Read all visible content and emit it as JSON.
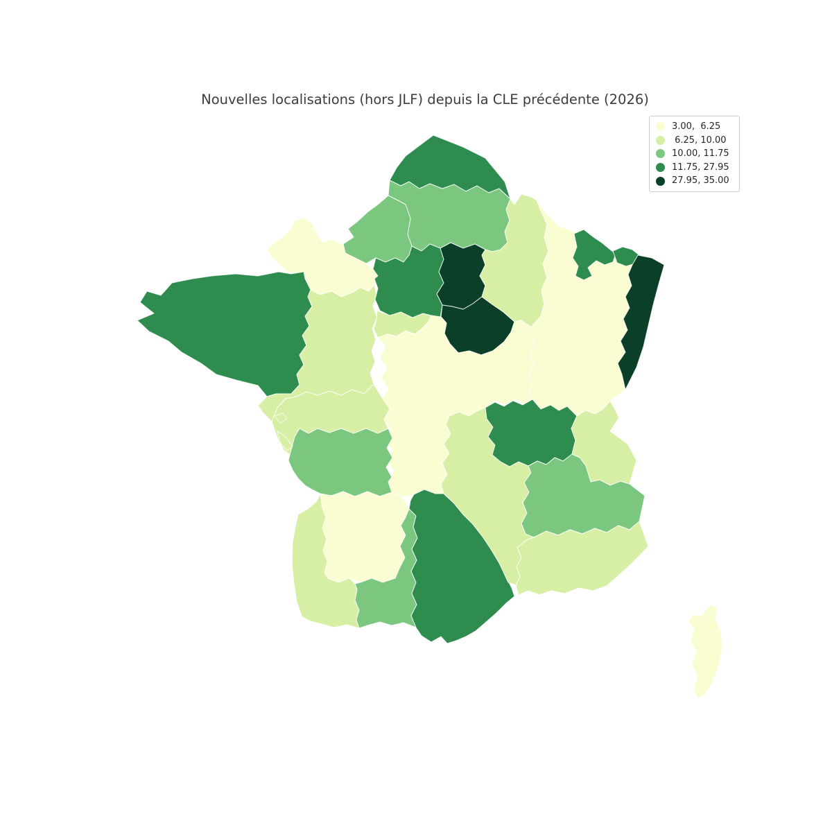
{
  "title": "Nouvelles localisations (hors JLF) depuis la CLE précédente (2026)",
  "chart_data": {
    "type": "choropleth",
    "title": "Nouvelles localisations (hors JLF) depuis la CLE précédente (2026)",
    "geography": "France (régions, avec Corse)",
    "grid": false,
    "legend": {
      "position": "upper-right",
      "entries": [
        {
          "label": "3.00,  6.25",
          "range": [
            3.0,
            6.25
          ],
          "color": "#fafcd2"
        },
        {
          "label": " 6.25, 10.00",
          "range": [
            6.25,
            10.0
          ],
          "color": "#d7efa4"
        },
        {
          "label": "10.00, 11.75",
          "range": [
            10.0,
            11.75
          ],
          "color": "#7cc77f"
        },
        {
          "label": "11.75, 27.95",
          "range": [
            11.75,
            27.95
          ],
          "color": "#2e8c4f"
        },
        {
          "label": "27.95, 35.00",
          "range": [
            27.95,
            35.0
          ],
          "color": "#0c3f28"
        }
      ]
    },
    "map_style": {
      "border_color": "#ffffff",
      "border_width": 1,
      "background": "#ffffff"
    },
    "regions": [
      {
        "id": "nord",
        "bin": 3
      },
      {
        "id": "picardie",
        "bin": 2
      },
      {
        "id": "haute_normandie",
        "bin": 2
      },
      {
        "id": "basse_normandie",
        "bin": 0
      },
      {
        "id": "bretagne",
        "bin": 3
      },
      {
        "id": "pays_de_la_loire",
        "bin": 1
      },
      {
        "id": "centre",
        "bin": 1
      },
      {
        "id": "perche",
        "bin": 3
      },
      {
        "id": "ile_de_france",
        "bin": 4
      },
      {
        "id": "bourgogne_nord",
        "bin": 4
      },
      {
        "id": "champagne",
        "bin": 1
      },
      {
        "id": "lorraine_fc",
        "bin": 0
      },
      {
        "id": "moselle_ouest",
        "bin": 3
      },
      {
        "id": "moselle_est",
        "bin": 3
      },
      {
        "id": "alsace",
        "bin": 4
      },
      {
        "id": "berry_auvergne",
        "bin": 0
      },
      {
        "id": "poitou",
        "bin": 1
      },
      {
        "id": "limousin",
        "bin": 2
      },
      {
        "id": "quercy",
        "bin": 0
      },
      {
        "id": "aquitaine",
        "bin": 1
      },
      {
        "id": "midi_pyrenees",
        "bin": 2
      },
      {
        "id": "languedoc",
        "bin": 3
      },
      {
        "id": "auvergne_est",
        "bin": 1
      },
      {
        "id": "lyonnais",
        "bin": 3
      },
      {
        "id": "savoie",
        "bin": 1
      },
      {
        "id": "dauphine",
        "bin": 2
      },
      {
        "id": "provence",
        "bin": 1
      },
      {
        "id": "corse",
        "bin": 0
      },
      {
        "id": "ile_re",
        "bin": 1
      },
      {
        "id": "ile_oleron",
        "bin": 1
      }
    ]
  }
}
